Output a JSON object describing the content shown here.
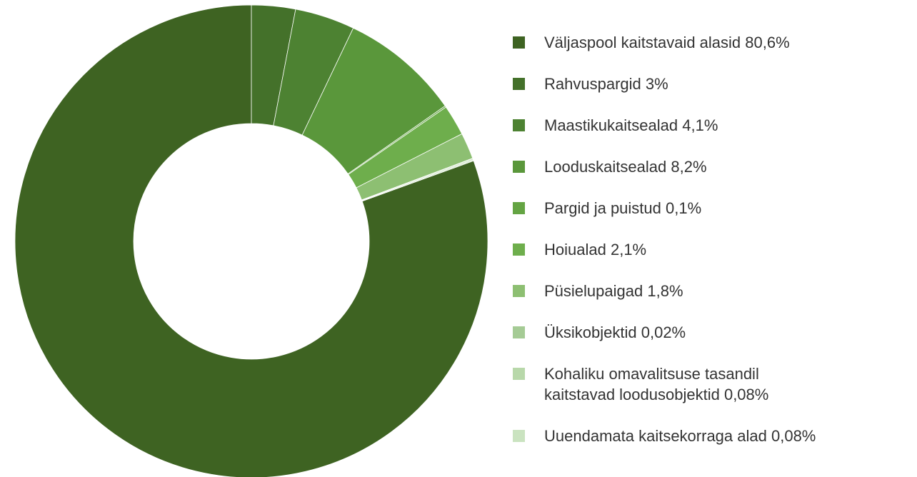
{
  "chart_data": {
    "type": "donut",
    "categories": [
      "Väljaspool kaitstavaid alasid",
      "Rahvuspargid",
      "Maastikukaitsealad",
      "Looduskaitsealad",
      "Pargid ja puistud",
      "Hoiualad",
      "Püsielupaigad",
      "Üksikobjektid",
      "Kohaliku omavalitsuse tasandil\nkaitstavad loodusobjektid",
      "Uuendamata kaitsekorraga alad"
    ],
    "values": [
      80.6,
      3,
      4.1,
      8.2,
      0.1,
      2.1,
      1.8,
      0.02,
      0.08,
      0.08
    ],
    "value_labels": [
      "80,6%",
      "3%",
      "4,1%",
      "8,2%",
      "0,1%",
      "2,1%",
      "1,8%",
      "0,02%",
      "0,08%",
      "0,08%"
    ],
    "colors": [
      "#3e6322",
      "#44712a",
      "#4d8232",
      "#5a973b",
      "#64a443",
      "#6eae4c",
      "#8dbf72",
      "#a5cb95",
      "#b8d8aa",
      "#cae3c0"
    ]
  }
}
